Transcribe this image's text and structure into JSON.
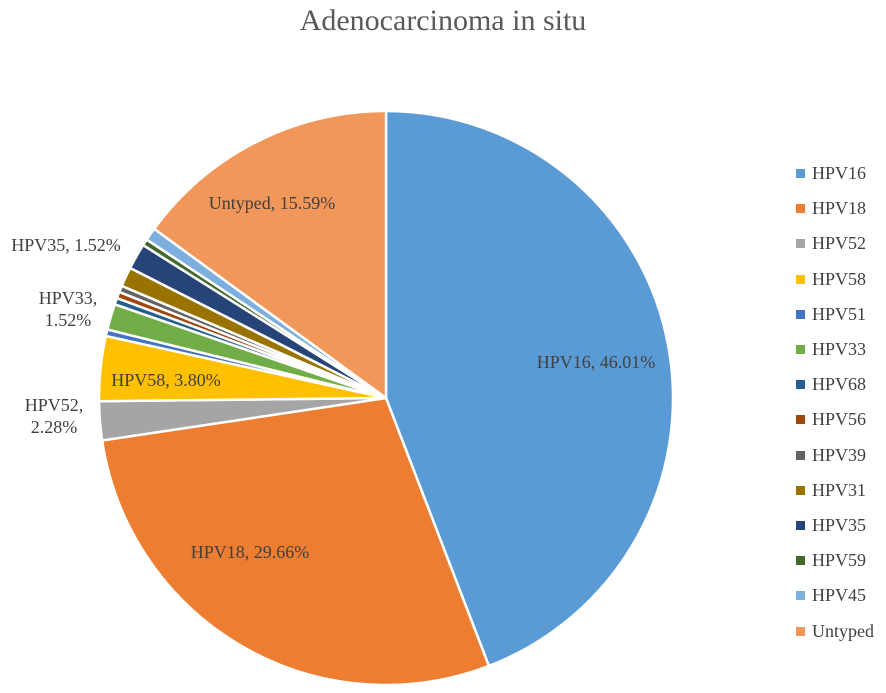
{
  "chart_data": {
    "type": "pie",
    "title": "Adenocarcinoma in situ",
    "slices": [
      {
        "name": "HPV16",
        "value": 46.01,
        "label": "HPV16, 46.01%",
        "color": "#5B9BD5"
      },
      {
        "name": "HPV18",
        "value": 29.66,
        "label": "HPV18, 29.66%",
        "color": "#ED7D31"
      },
      {
        "name": "HPV52",
        "value": 2.28,
        "label": "HPV52,\n2.28%",
        "color": "#A5A5A5"
      },
      {
        "name": "HPV58",
        "value": 3.8,
        "label": "HPV58, 3.80%",
        "color": "#FFC000"
      },
      {
        "name": "HPV51",
        "value": 0.38,
        "label": "",
        "color": "#4472C4"
      },
      {
        "name": "HPV33",
        "value": 1.52,
        "label": "HPV33,\n1.52%",
        "color": "#70AD47"
      },
      {
        "name": "HPV68",
        "value": 0.38,
        "label": "",
        "color": "#255E91"
      },
      {
        "name": "HPV56",
        "value": 0.38,
        "label": "",
        "color": "#9E480E"
      },
      {
        "name": "HPV39",
        "value": 0.38,
        "label": "",
        "color": "#636363"
      },
      {
        "name": "HPV31",
        "value": 1.14,
        "label": "",
        "color": "#997300"
      },
      {
        "name": "HPV35",
        "value": 1.52,
        "label": "HPV35, 1.52%",
        "color": "#264478"
      },
      {
        "name": "HPV59",
        "value": 0.38,
        "label": "",
        "color": "#43682B"
      },
      {
        "name": "HPV45",
        "value": 0.76,
        "label": "",
        "color": "#7CAFDD"
      },
      {
        "name": "Untyped",
        "value": 15.59,
        "label": "Untyped, 15.59%",
        "color": "#F1975A"
      }
    ],
    "legend": {
      "position": "right"
    }
  }
}
